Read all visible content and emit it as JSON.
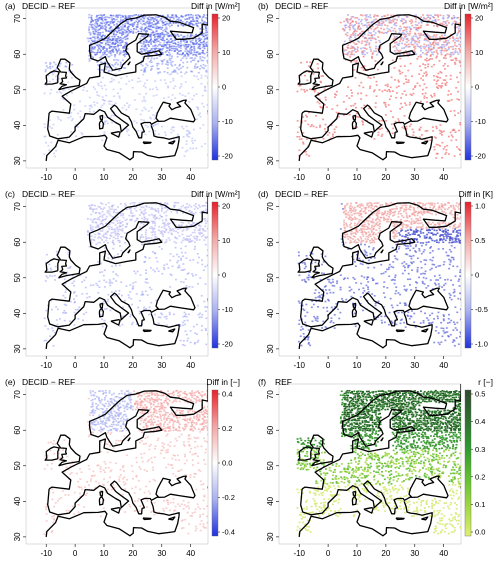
{
  "panels": [
    {
      "id": "a",
      "label": "(a)",
      "title": "DECID − REF",
      "unit": "Diff in [W/m²]",
      "colorbar": {
        "ticks": [
          "20",
          "10",
          "0",
          "-10",
          "-20"
        ],
        "colors": [
          "#e8202a",
          "#f3a7a5",
          "#ffffff",
          "#a8b0f0",
          "#2030e0"
        ]
      },
      "pattern": "blue-north"
    },
    {
      "id": "b",
      "label": "(b)",
      "title": "DECID − REF",
      "unit": "Diff in [W/m²]",
      "colorbar": {
        "ticks": [
          "20",
          "10",
          "0",
          "-10",
          "-20"
        ],
        "colors": [
          "#e8202a",
          "#f3a7a5",
          "#ffffff",
          "#a8b0f0",
          "#2030e0"
        ]
      },
      "pattern": "red-mixed"
    },
    {
      "id": "c",
      "label": "(c)",
      "title": "DECID − REF",
      "unit": "Diff in [W/m²]",
      "colorbar": {
        "ticks": [
          "20",
          "10",
          "0",
          "-10",
          "-20"
        ],
        "colors": [
          "#e8202a",
          "#f3a7a5",
          "#ffffff",
          "#a8b0f0",
          "#2030e0"
        ]
      },
      "pattern": "blue-light"
    },
    {
      "id": "d",
      "label": "(d)",
      "title": "DECID − REF",
      "unit": "Diff in [K]",
      "colorbar": {
        "ticks": [
          "1.0",
          "0.5",
          "0",
          "-0.5",
          "-1.0"
        ],
        "colors": [
          "#e8202a",
          "#f3a7a5",
          "#ffffff",
          "#a8b0f0",
          "#2030e0"
        ]
      },
      "pattern": "red-north-blue-south"
    },
    {
      "id": "e",
      "label": "(e)",
      "title": "DECID − REF",
      "unit": "Diff in [−]",
      "colorbar": {
        "ticks": [
          "0.4",
          "0.2",
          "0.0",
          "-0.2",
          "-0.4"
        ],
        "colors": [
          "#e8202a",
          "#f3a7a5",
          "#ffffff",
          "#a8b0f0",
          "#2030e0"
        ]
      },
      "pattern": "red-light"
    },
    {
      "id": "f",
      "label": "(f)",
      "title": "REF",
      "unit": "r [−]",
      "colorbar": {
        "ticks": [
          "0.5",
          "0.4",
          "0.3",
          "0.2",
          "0.1",
          "0.0"
        ],
        "colors": [
          "#2e4a2e",
          "#2f6f2f",
          "#2e9a2e",
          "#60c030",
          "#a0d840",
          "#e0f070"
        ]
      },
      "pattern": "green"
    }
  ],
  "axes": {
    "x_ticks": [
      "-10",
      "0",
      "10",
      "20",
      "30",
      "40"
    ],
    "y_ticks": [
      "70",
      "60",
      "50",
      "40",
      "30"
    ]
  }
}
